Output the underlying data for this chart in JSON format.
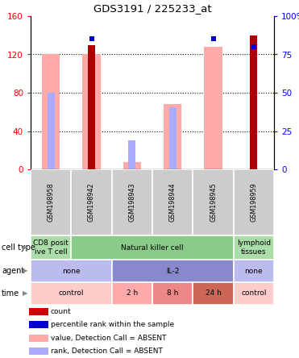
{
  "title": "GDS3191 / 225233_at",
  "samples": [
    "GSM198958",
    "GSM198942",
    "GSM198943",
    "GSM198944",
    "GSM198945",
    "GSM198959"
  ],
  "ylim_left": [
    0,
    160
  ],
  "yticks_left": [
    0,
    40,
    80,
    120,
    160
  ],
  "yticks_right": [
    0,
    25,
    50,
    75,
    100
  ],
  "yticklabels_right": [
    "0",
    "25",
    "50",
    "75",
    "100%"
  ],
  "count_values": [
    null,
    130,
    null,
    null,
    null,
    140
  ],
  "percentile_values": [
    null,
    85,
    null,
    null,
    85,
    80
  ],
  "absent_value_values": [
    120,
    120,
    8,
    68,
    128,
    null
  ],
  "absent_rank_values": [
    80,
    null,
    30,
    65,
    null,
    null
  ],
  "annotation_rows": [
    {
      "label": "cell type",
      "cells": [
        {
          "text": "CD8 posit\nive T cell",
          "color": "#aaddaa",
          "span": [
            0,
            1
          ]
        },
        {
          "text": "Natural killer cell",
          "color": "#88cc88",
          "span": [
            1,
            5
          ]
        },
        {
          "text": "lymphoid\ntissues",
          "color": "#aaddaa",
          "span": [
            5,
            6
          ]
        }
      ]
    },
    {
      "label": "agent",
      "cells": [
        {
          "text": "none",
          "color": "#bbbbee",
          "span": [
            0,
            2
          ]
        },
        {
          "text": "IL-2",
          "color": "#8888cc",
          "span": [
            2,
            5
          ]
        },
        {
          "text": "none",
          "color": "#bbbbee",
          "span": [
            5,
            6
          ]
        }
      ]
    },
    {
      "label": "time",
      "cells": [
        {
          "text": "control",
          "color": "#ffcccc",
          "span": [
            0,
            2
          ]
        },
        {
          "text": "2 h",
          "color": "#ffaaaa",
          "span": [
            2,
            3
          ]
        },
        {
          "text": "8 h",
          "color": "#ee8888",
          "span": [
            3,
            4
          ]
        },
        {
          "text": "24 h",
          "color": "#cc6655",
          "span": [
            4,
            5
          ]
        },
        {
          "text": "control",
          "color": "#ffcccc",
          "span": [
            5,
            6
          ]
        }
      ]
    }
  ],
  "legend_items": [
    {
      "color": "#cc0000",
      "label": "count"
    },
    {
      "color": "#0000cc",
      "label": "percentile rank within the sample"
    },
    {
      "color": "#ffaaaa",
      "label": "value, Detection Call = ABSENT"
    },
    {
      "color": "#aaaaff",
      "label": "rank, Detection Call = ABSENT"
    }
  ],
  "count_color": "#aa0000",
  "percentile_color": "#0000cc",
  "absent_value_color": "#ffaaaa",
  "absent_rank_color": "#aaaaff"
}
